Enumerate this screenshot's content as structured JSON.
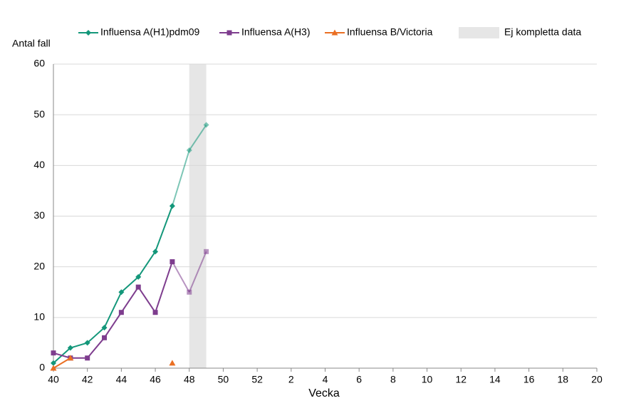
{
  "chart_data": {
    "type": "line",
    "y_label": "Antal fall",
    "x_label": "Vecka",
    "categories": [
      40,
      null,
      42,
      null,
      44,
      null,
      46,
      null,
      48,
      null,
      50,
      null,
      52,
      null,
      2,
      null,
      4,
      null,
      6,
      null,
      8,
      null,
      10,
      null,
      12,
      null,
      14,
      null,
      16,
      null,
      18,
      null,
      20
    ],
    "series": [
      {
        "name": "Influensa A(H1)pdm09",
        "color": "#13977a",
        "marker": "diamond",
        "values": [
          1,
          4,
          5,
          8,
          15,
          18,
          23,
          32,
          43,
          48,
          null,
          null,
          null,
          null,
          null,
          null,
          null,
          null,
          null,
          null,
          null,
          null,
          null,
          null,
          null,
          null,
          null,
          null,
          null,
          null,
          null,
          null,
          null
        ]
      },
      {
        "name": "Influensa A(H3)",
        "color": "#7e3d8e",
        "marker": "square",
        "values": [
          3,
          2,
          2,
          6,
          11,
          16,
          11,
          21,
          15,
          23,
          null,
          null,
          null,
          null,
          null,
          null,
          null,
          null,
          null,
          null,
          null,
          null,
          null,
          null,
          null,
          null,
          null,
          null,
          null,
          null,
          null,
          null,
          null
        ]
      },
      {
        "name": "Influensa B/Victoria",
        "color": "#ea6f23",
        "marker": "triangle",
        "values": [
          0,
          2,
          null,
          null,
          null,
          null,
          null,
          1,
          null,
          null,
          null,
          null,
          null,
          null,
          null,
          null,
          null,
          null,
          null,
          null,
          null,
          null,
          null,
          null,
          null,
          null,
          null,
          null,
          null,
          null,
          null,
          null,
          null
        ]
      }
    ],
    "shaded": {
      "name": "Ej kompletta data",
      "color": "#e6e6e6",
      "from": 48,
      "to": 49
    },
    "ylim": [
      0,
      60
    ],
    "yticks": [
      0,
      10,
      20,
      30,
      40,
      50,
      60
    ],
    "grid": true
  }
}
